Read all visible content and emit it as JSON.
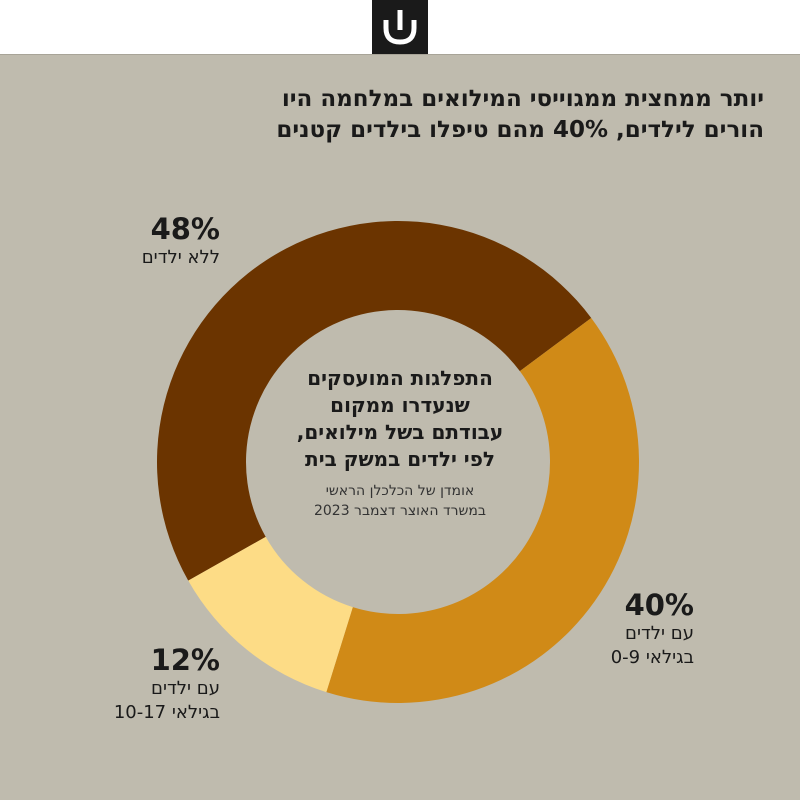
{
  "header": {
    "logo_icon": "haaretz-logo-icon"
  },
  "title": {
    "line1": "יותר ממחצית ממגוייסי המילואים במלחמה היו",
    "line2": "הורים לילדים, 40% מהם טיפלו בילדים קטנים"
  },
  "center": {
    "line1": "התפלגות המועסקים",
    "line2": "שנעדרו ממקום",
    "line3": "עבודתם בשל מילואים,",
    "line4": "לפי ילדים במשק בית",
    "source1": "אומדן של הכלכלן הראשי",
    "source2": "במשרד האוצר דצמבר 2023"
  },
  "labels": {
    "no_kids": {
      "pct": "48%",
      "line1": "ללא ילדים"
    },
    "young_kids": {
      "pct": "40%",
      "line1": "עם ילדים",
      "line2": "בגילאי 0-9"
    },
    "older_kids": {
      "pct": "12%",
      "line1": "עם ילדים",
      "line2": "בגילאי 10-17"
    }
  },
  "colors": {
    "background": "#bfbbae",
    "no_kids": "#6b3400",
    "young_kids": "#d08a17",
    "older_kids": "#fddc86"
  },
  "chart_data": {
    "type": "pie",
    "categories": [
      "ללא ילדים",
      "עם ילדים בגילאי 0-9",
      "עם ילדים בגילאי 10-17"
    ],
    "values": [
      48,
      40,
      12
    ],
    "unit": "%",
    "donut": true
  }
}
